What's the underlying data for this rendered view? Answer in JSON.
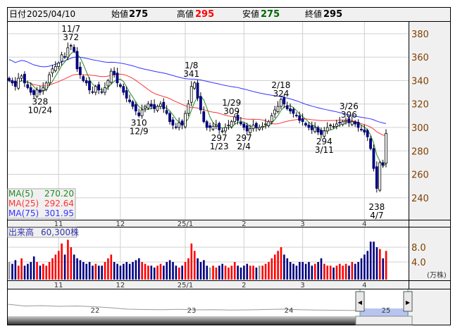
{
  "header": {
    "date_label": "日付",
    "date": "2025/04/10",
    "open_label": "始値",
    "open": "275",
    "high_label": "高値",
    "high": "295",
    "low_label": "安値",
    "low": "275",
    "close_label": "終値",
    "close": "295"
  },
  "colors": {
    "up": "#ff0000",
    "down": "#000080",
    "flat": "#999999",
    "ma5": "#228822",
    "ma25": "#ff3333",
    "ma75": "#3333ff",
    "axis_text": "#804000"
  },
  "legend": {
    "ma5_label": "MA(5)",
    "ma5": "270.20",
    "ma25_label": "MA(25)",
    "ma25": "292.64",
    "ma75_label": "MA(75)",
    "ma75": "301.95",
    "volume_label": "出来高",
    "volume": "60,300株"
  },
  "chart_data": {
    "type": "candlestick",
    "price_axis": {
      "ticks": [
        240,
        260,
        280,
        300,
        320,
        340,
        360,
        380
      ],
      "ylim": [
        230,
        390
      ]
    },
    "volume_axis": {
      "ticks": [
        "4.0",
        "8.0"
      ],
      "unit": "(万株)"
    },
    "month_labels": [
      "11",
      "12",
      "25/1",
      "2",
      "3",
      "4"
    ],
    "closes": [
      340,
      338,
      335,
      342,
      344,
      338,
      334,
      330,
      328,
      332,
      330,
      334,
      338,
      345,
      350,
      352,
      355,
      362,
      360,
      368,
      370,
      365,
      350,
      345,
      340,
      338,
      332,
      330,
      335,
      332,
      330,
      334,
      340,
      348,
      345,
      338,
      335,
      330,
      325,
      322,
      318,
      314,
      310,
      315,
      318,
      320,
      318,
      316,
      318,
      320,
      316,
      312,
      305,
      302,
      300,
      304,
      302,
      312,
      320,
      335,
      338,
      325,
      315,
      305,
      300,
      300,
      301,
      302,
      298,
      297,
      300,
      302,
      305,
      309,
      306,
      303,
      300,
      297,
      299,
      302,
      300,
      300,
      301,
      303,
      305,
      310,
      315,
      318,
      324,
      320,
      316,
      314,
      312,
      310,
      306,
      305,
      302,
      300,
      298,
      300,
      296,
      294,
      297,
      300,
      302,
      301,
      303,
      304,
      305,
      306,
      304,
      305,
      303,
      300,
      298,
      296,
      292,
      282,
      265,
      248,
      270,
      268,
      295
    ],
    "volumes": [
      4,
      3.5,
      4.5,
      3,
      5,
      3,
      3.5,
      4,
      5.5,
      4,
      3,
      3.5,
      3,
      4,
      5,
      6,
      7,
      9,
      6,
      10,
      8,
      6,
      5,
      4.5,
      4,
      3.5,
      4,
      3,
      3.5,
      3,
      3,
      4,
      5,
      6,
      4,
      3.5,
      3,
      3.5,
      4,
      3.5,
      4,
      4.5,
      5,
      4,
      3.5,
      3,
      3,
      2.5,
      3,
      3.5,
      3,
      4,
      4.5,
      4,
      3,
      2.5,
      3,
      4,
      5,
      9,
      7,
      5,
      4,
      4.5,
      3,
      2.5,
      3,
      2.5,
      3,
      3.5,
      3,
      2.5,
      3,
      4,
      3,
      2.5,
      3,
      3.5,
      3,
      3,
      2.5,
      3,
      3,
      3.5,
      4,
      5,
      6,
      7,
      8,
      6,
      5,
      4,
      3.5,
      3,
      4,
      4,
      3.5,
      4,
      3,
      3.5,
      4,
      5,
      3.5,
      3,
      3,
      2.5,
      3,
      3.5,
      3,
      3.5,
      3,
      4,
      3.5,
      4,
      5,
      6,
      7,
      9.5,
      9.5,
      8,
      7.5,
      5,
      7
    ],
    "annotations": [
      {
        "date": "10/24",
        "value": "328",
        "pos": "below"
      },
      {
        "date": "11/7",
        "value": "372",
        "pos": "above"
      },
      {
        "date": "12/9",
        "value": "310",
        "pos": "below"
      },
      {
        "date": "1/8",
        "value": "341",
        "pos": "above"
      },
      {
        "date": "1/23",
        "value": "297",
        "pos": "below"
      },
      {
        "date": "1/29",
        "value": "309",
        "pos": "above"
      },
      {
        "date": "2/4",
        "value": "297",
        "pos": "below"
      },
      {
        "date": "2/18",
        "value": "324",
        "pos": "above"
      },
      {
        "date": "3/11",
        "value": "294",
        "pos": "below"
      },
      {
        "date": "3/26",
        "value": "306",
        "pos": "above"
      },
      {
        "date": "4/7",
        "value": "238",
        "pos": "below"
      }
    ],
    "navigator": {
      "year_labels": [
        "22",
        "23",
        "24",
        "25"
      ],
      "series": [
        340,
        330,
        332,
        328,
        330,
        326,
        320,
        312,
        310,
        309,
        311,
        308,
        309,
        307,
        308,
        310,
        312,
        309,
        307,
        306,
        305,
        304,
        303,
        302
      ]
    }
  }
}
